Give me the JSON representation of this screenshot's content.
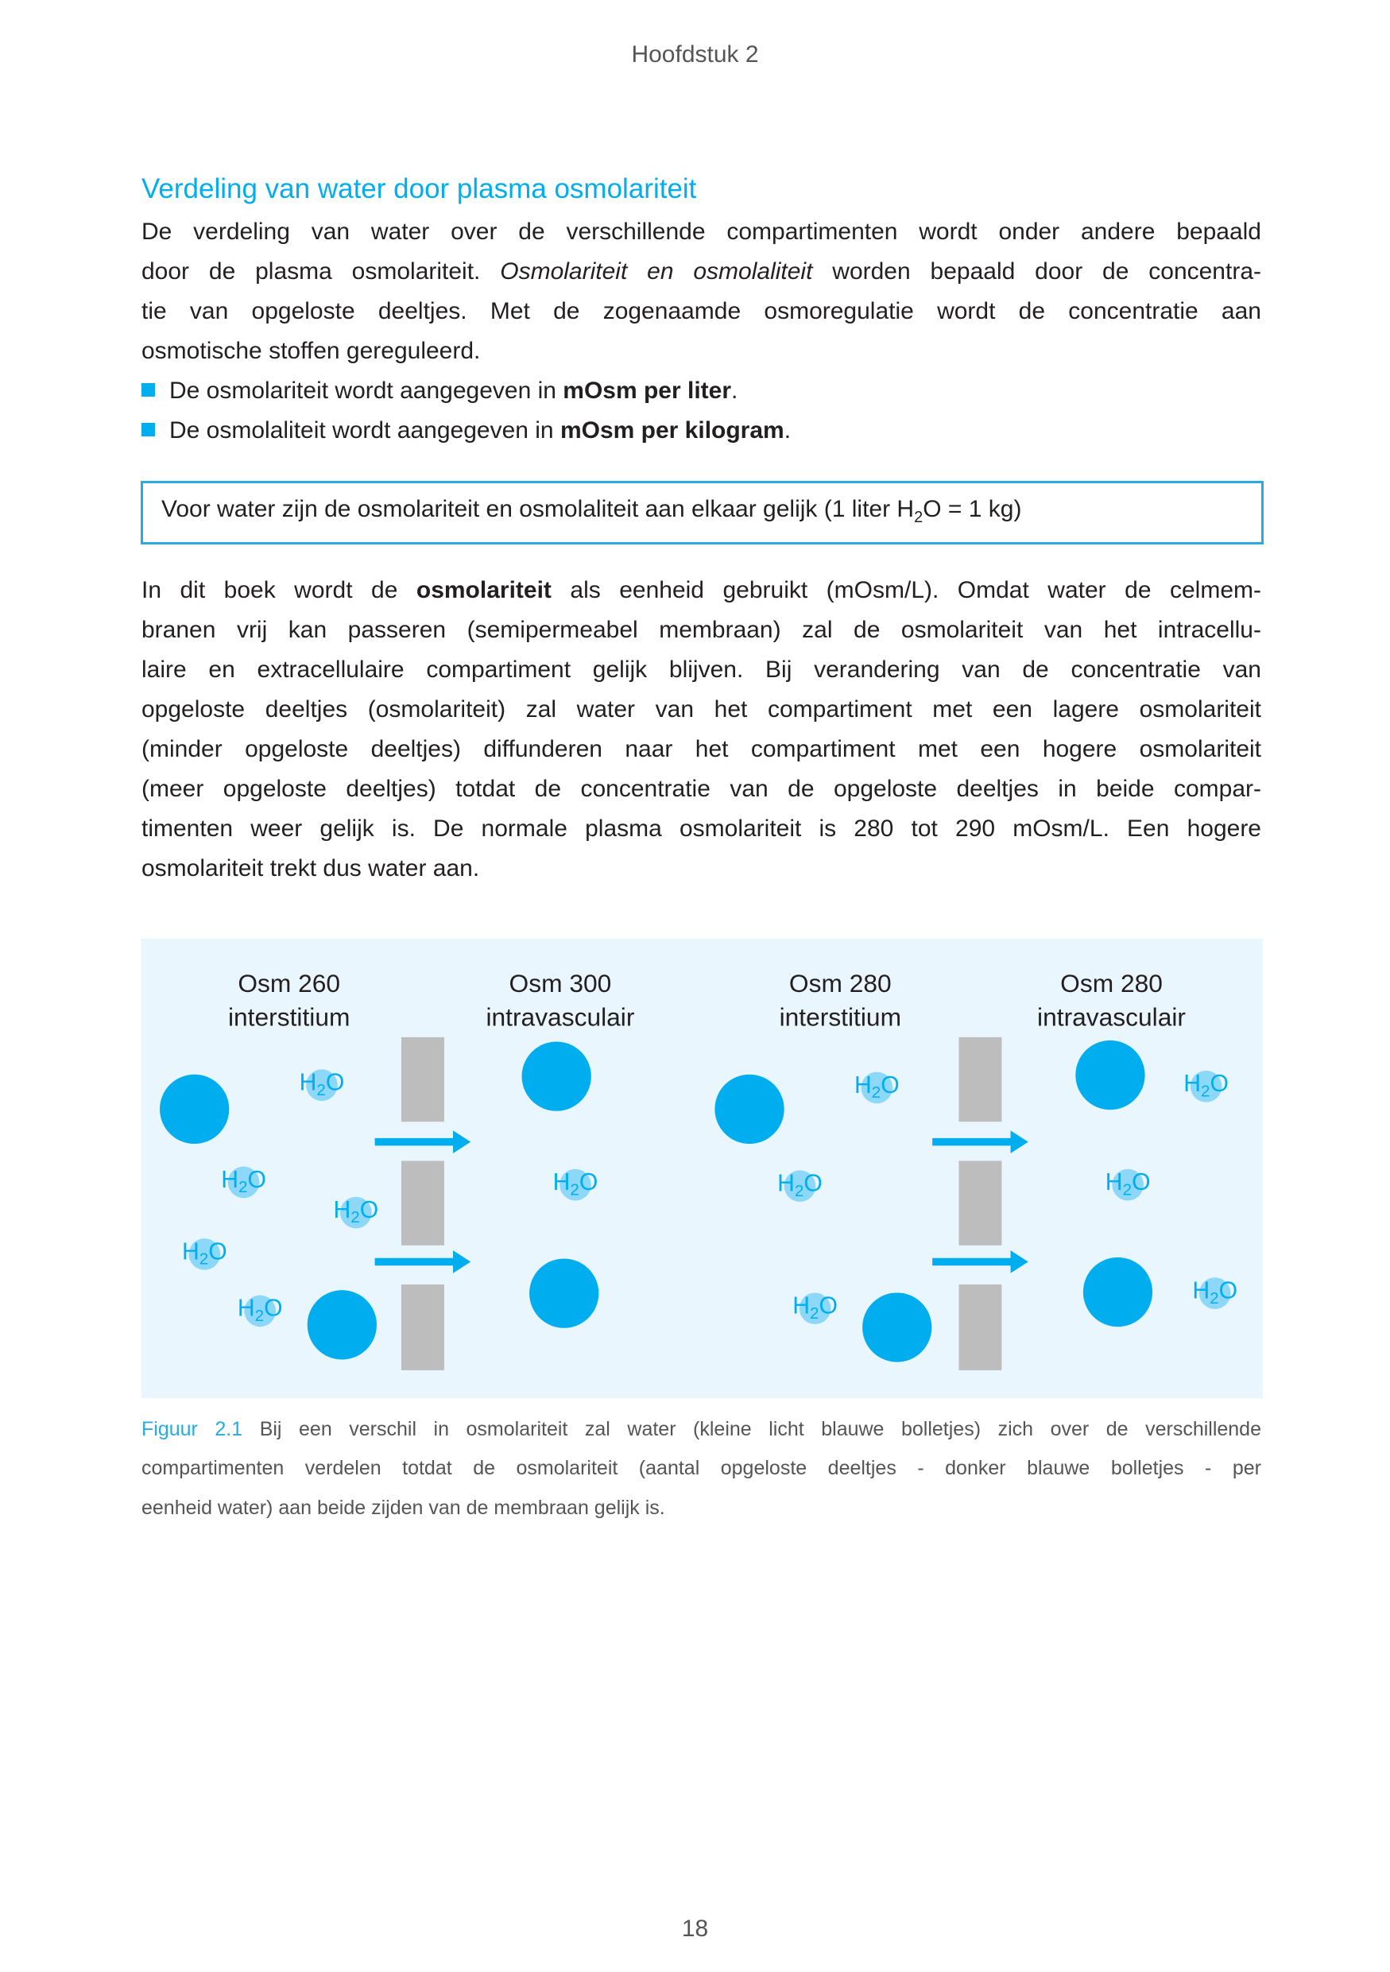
{
  "header": {
    "chapter": "Hoofdstuk 2"
  },
  "section": {
    "heading": "Verdeling van water door plasma osmolariteit",
    "p1": {
      "l1": "De verdeling van water over de verschillende compartimenten wordt onder andere bepaald",
      "l2a": "door de plasma osmolariteit. ",
      "l2b": "Osmolariteit en osmolaliteit",
      "l2c": " worden bepaald door de concentra-",
      "l3": "tie van opgeloste deeltjes. Met de zogenaamde osmoregulatie wordt de concentratie aan",
      "l4": "osmotische stoffen gereguleerd."
    },
    "bullets": [
      {
        "text": "De osmolariteit wordt aangegeven in ",
        "bold": "mOsm per liter",
        "end": "."
      },
      {
        "text": "De osmolaliteit wordt aangegeven in ",
        "bold": "mOsm per kilogram",
        "end": "."
      }
    ],
    "note": {
      "a": "Voor water zijn de osmolariteit en osmolaliteit aan elkaar gelijk (1 liter H",
      "sub": "2",
      "b": "O = 1 kg)"
    },
    "p2": {
      "l1a": "In dit boek wordt de ",
      "l1b": "osmolariteit",
      "l1c": " als eenheid gebruikt (mOsm/L). Omdat water de celmem-",
      "l2": "branen vrij kan passeren (semipermeabel membraan) zal de osmolariteit van het intracellu-",
      "l3": "laire en extracellulaire compartiment gelijk blijven. Bij verandering van de concentratie van",
      "l4": "opgeloste deeltjes (osmolariteit) zal water van het compartiment met een lagere osmolariteit",
      "l5": "(minder opgeloste deeltjes) diffunderen naar het compartiment met een hogere osmolariteit",
      "l6": "(meer opgeloste deeltjes) totdat de concentratie van de opgeloste deeltjes in beide compar-",
      "l7": "timenten weer gelijk is. De normale plasma osmolariteit is 280 tot 290 mOsm/L. Een hogere",
      "l8": "osmolariteit trekt dus water aan."
    }
  },
  "figure": {
    "colors": {
      "solute": "#00aeef",
      "water": "#8dd8f8",
      "membrane": "#bdbdbd",
      "background": "#eaf6fd",
      "arrow": "#00aeef"
    },
    "compartments": [
      {
        "osm": "Osm 260",
        "name": "interstitium"
      },
      {
        "osm": "Osm 300",
        "name": "intravasculair"
      },
      {
        "osm": "Osm 280",
        "name": "interstitium"
      },
      {
        "osm": "Osm 280",
        "name": "intravasculair"
      }
    ],
    "water_label": {
      "h": "H",
      "sub": "2",
      "o": "O"
    },
    "caption": {
      "label": "Figuur 2.1",
      "l1": " Bij een verschil in osmolariteit zal water (kleine licht blauwe bolletjes) zich over de verschillende",
      "l2": "compartimenten verdelen totdat de osmolariteit (aantal opgeloste deeltjes - donker blauwe bolletjes - per",
      "l3": "eenheid water) aan beide zijden van de membraan gelijk is."
    }
  },
  "footer": {
    "page_number": "18"
  }
}
